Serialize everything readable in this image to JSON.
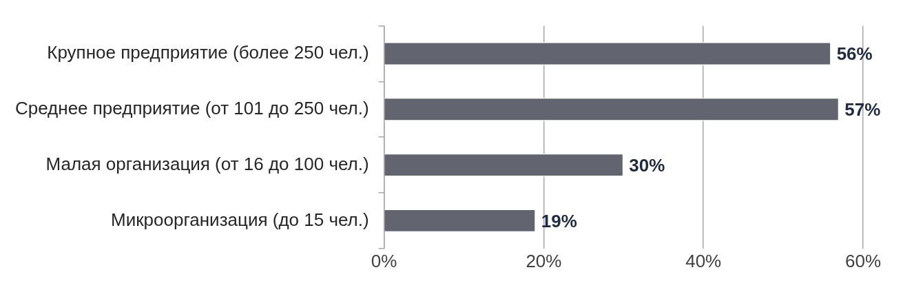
{
  "chart_data": {
    "type": "bar",
    "orientation": "horizontal",
    "categories": [
      "Крупное предприятие (более 250 чел.)",
      "Среднее предприятие (от 101 до 250 чел.)",
      "Малая организация (от 16 до 100 чел.)",
      "Микроорганизация (до 15 чел.)"
    ],
    "values": [
      56,
      57,
      30,
      19
    ],
    "color": "#62646f",
    "value_labels": [
      "56%",
      "57%",
      "30%",
      "19%"
    ],
    "xlim": [
      0,
      60
    ],
    "xticks": [
      {
        "value": 0,
        "label": "0%"
      },
      {
        "value": 20,
        "label": "20%"
      },
      {
        "value": 40,
        "label": "40%"
      },
      {
        "value": 60,
        "label": "60%"
      }
    ],
    "grid": "x",
    "legend": false
  }
}
